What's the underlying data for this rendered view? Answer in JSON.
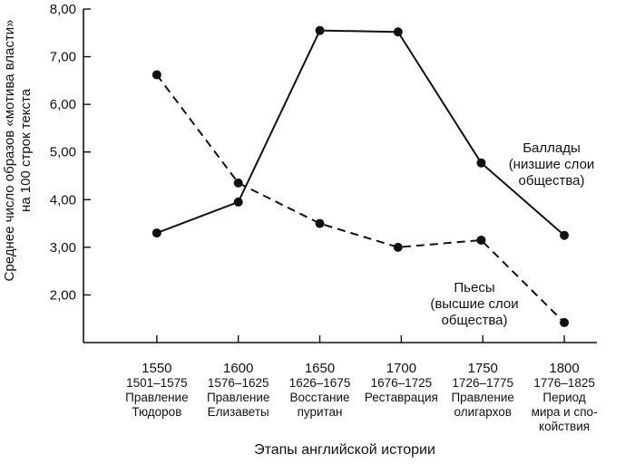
{
  "chart_data": {
    "type": "line",
    "title": "",
    "xlabel": "Этапы английской истории",
    "ylabel": [
      "Среднее число образов «мотива власти»",
      "на 100 строк текста"
    ],
    "x": [
      1550,
      1600,
      1650,
      1700,
      1750,
      1800
    ],
    "xlim": [
      1505,
      1820
    ],
    "ylim": [
      1.0,
      8.0
    ],
    "yticks": [
      "2,00",
      "3,00",
      "4,00",
      "5,00",
      "6,00",
      "7,00",
      "8,00"
    ],
    "ytick_values": [
      2,
      3,
      4,
      5,
      6,
      7,
      8
    ],
    "periods": [
      [
        "1501–1575",
        "Правление",
        "Тюдоров"
      ],
      [
        "1576–1625",
        "Правление",
        "Елизаветы"
      ],
      [
        "1626–1675",
        "Восстание",
        "пуритан"
      ],
      [
        "1676–1725",
        "Реставрация"
      ],
      [
        "1726–1775",
        "Правление",
        "олигархов"
      ],
      [
        "1776–1825",
        "Период",
        "мира и спо-",
        "койствия"
      ]
    ],
    "series": [
      {
        "name": "Баллады (низшие слои общества)",
        "label_lines": [
          "Баллады",
          "(низшие слои",
          "общества)"
        ],
        "style": "solid",
        "x": [
          1550,
          1600,
          1650,
          1698,
          1749,
          1800
        ],
        "values": [
          3.3,
          3.95,
          7.55,
          7.52,
          4.77,
          3.25
        ]
      },
      {
        "name": "Пьесы (высшие слои общества)",
        "label_lines": [
          "Пьесы",
          "(высшие слои",
          "общества)"
        ],
        "style": "dashed",
        "x": [
          1550,
          1600,
          1650,
          1698,
          1749,
          1800
        ],
        "values": [
          6.62,
          4.35,
          3.5,
          3.0,
          3.15,
          1.42
        ]
      }
    ]
  }
}
